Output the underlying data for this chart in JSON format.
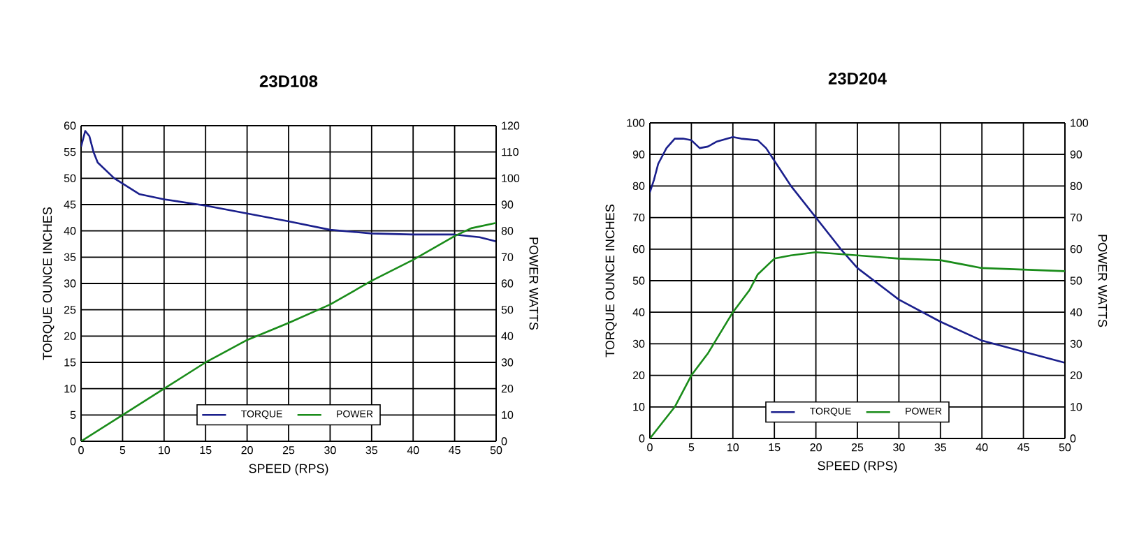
{
  "chart_data": [
    {
      "type": "line",
      "title": "23D108",
      "xlabel": "SPEED (RPS)",
      "ylabel": "TORQUE  OUNCE  INCHES",
      "y2label": "POWER  WATTS",
      "xlim": [
        0,
        50
      ],
      "xticks": [
        0,
        5,
        10,
        15,
        20,
        25,
        30,
        35,
        40,
        45,
        50
      ],
      "ylim": [
        0,
        60
      ],
      "yticks": [
        0,
        5,
        10,
        15,
        20,
        25,
        30,
        35,
        40,
        45,
        50,
        55,
        60
      ],
      "y2lim": [
        0,
        120
      ],
      "y2ticks": [
        0,
        10,
        20,
        30,
        40,
        50,
        60,
        70,
        80,
        90,
        100,
        110,
        120
      ],
      "grid": true,
      "legend": "bottom",
      "series": [
        {
          "name": "TORQUE",
          "color": "#1a1f8c",
          "x": [
            0,
            0.5,
            1,
            1.5,
            2,
            3,
            4,
            5,
            7,
            10,
            15,
            20,
            25,
            30,
            35,
            40,
            45,
            48,
            50
          ],
          "values": [
            56,
            59,
            58,
            55,
            53,
            51.5,
            50,
            49,
            47,
            46,
            44.8,
            43.3,
            41.8,
            40.2,
            39.5,
            39.3,
            39.3,
            38.8,
            38
          ]
        },
        {
          "name": "POWER",
          "color": "#1a8c1a",
          "axis": "y2",
          "x": [
            0,
            5,
            10,
            15,
            20,
            25,
            30,
            35,
            40,
            45,
            47,
            50
          ],
          "values": [
            0,
            10,
            20,
            30,
            38.5,
            45,
            52,
            61,
            69,
            78,
            81,
            83
          ]
        }
      ]
    },
    {
      "type": "line",
      "title": "23D204",
      "xlabel": "SPEED (RPS)",
      "ylabel": "TORQUE  OUNCE  INCHES",
      "y2label": "POWER  WATTS",
      "xlim": [
        0,
        50
      ],
      "xticks": [
        0,
        5,
        10,
        15,
        20,
        25,
        30,
        35,
        40,
        45,
        50
      ],
      "ylim": [
        0,
        100
      ],
      "yticks": [
        0,
        10,
        20,
        30,
        40,
        50,
        60,
        70,
        80,
        90,
        100
      ],
      "y2lim": [
        0,
        100
      ],
      "y2ticks": [
        0,
        10,
        20,
        30,
        40,
        50,
        60,
        70,
        80,
        90,
        100
      ],
      "grid": true,
      "legend": "bottom",
      "series": [
        {
          "name": "TORQUE",
          "color": "#1a1f8c",
          "x": [
            0,
            0.5,
            1,
            2,
            3,
            4,
            5,
            6,
            7,
            8,
            10,
            11,
            13,
            14,
            15,
            17,
            20,
            23,
            25,
            30,
            35,
            40,
            45,
            50
          ],
          "values": [
            78,
            82,
            87,
            92,
            95,
            95,
            94.5,
            92,
            92.5,
            94,
            95.5,
            95,
            94.5,
            92,
            88,
            80,
            70,
            60,
            54,
            44,
            37,
            31,
            27.5,
            24
          ]
        },
        {
          "name": "POWER",
          "color": "#1a8c1a",
          "axis": "y2",
          "x": [
            0,
            3,
            5,
            7,
            10,
            12,
            13,
            15,
            17,
            20,
            25,
            30,
            35,
            38,
            40,
            45,
            50
          ],
          "values": [
            0,
            10,
            20,
            27,
            40,
            47,
            52,
            57,
            58,
            59,
            58,
            57,
            56.5,
            55,
            54,
            53.5,
            53
          ]
        }
      ]
    }
  ]
}
